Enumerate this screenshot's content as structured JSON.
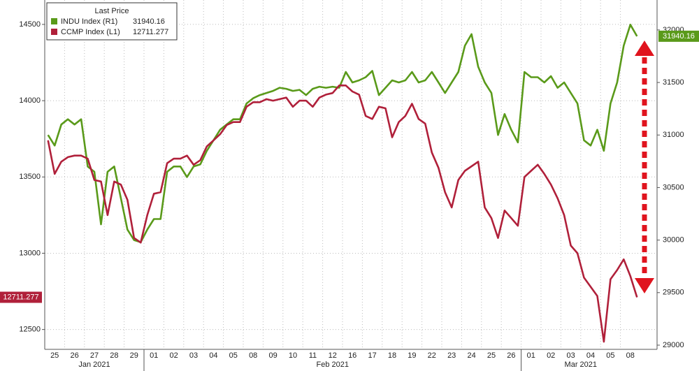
{
  "chart_data": {
    "type": "line",
    "legend_title": "Last Price",
    "months": [
      "Jan 2021",
      "Feb 2021",
      "Mar 2021"
    ],
    "categories": [
      null,
      "25",
      null,
      null,
      "26",
      null,
      null,
      "27",
      null,
      null,
      "28",
      null,
      null,
      "29",
      null,
      null,
      "01",
      null,
      null,
      "02",
      null,
      null,
      "03",
      null,
      null,
      "04",
      null,
      null,
      "05",
      null,
      null,
      "08",
      null,
      null,
      "09",
      null,
      null,
      "10",
      null,
      null,
      "11",
      null,
      null,
      "12",
      null,
      null,
      "16",
      null,
      null,
      "17",
      null,
      null,
      "18",
      null,
      null,
      "19",
      null,
      null,
      "22",
      null,
      null,
      "23",
      null,
      null,
      "24",
      null,
      null,
      "25",
      null,
      null,
      "26",
      null,
      null,
      "01",
      null,
      null,
      "02",
      null,
      null,
      "03",
      null,
      null,
      "04",
      null,
      null,
      "05",
      null,
      null,
      "08",
      null
    ],
    "series": [
      {
        "name": "INDU Index (R1)",
        "color": "#5a9a1a",
        "axis": "y2",
        "last_label": "31940.16",
        "values": [
          31000,
          30900,
          31100,
          31150,
          31100,
          31150,
          30700,
          30650,
          30150,
          30650,
          30700,
          30400,
          30100,
          30000,
          29980,
          30100,
          30200,
          30200,
          30650,
          30700,
          30700,
          30600,
          30700,
          30720,
          30850,
          30950,
          31050,
          31100,
          31150,
          31150,
          31300,
          31350,
          31380,
          31400,
          31420,
          31450,
          31440,
          31420,
          31430,
          31380,
          31440,
          31460,
          31450,
          31460,
          31450,
          31600,
          31500,
          31520,
          31550,
          31610,
          31380,
          31450,
          31520,
          31500,
          31520,
          31600,
          31500,
          31520,
          31600,
          31500,
          31400,
          31500,
          31600,
          31850,
          31960,
          31650,
          31500,
          31400,
          31000,
          31200,
          31050,
          30930,
          31600,
          31550,
          31550,
          31500,
          31560,
          31450,
          31500,
          31400,
          31300,
          30950,
          30900,
          31050,
          30850,
          31300,
          31500,
          31850,
          32050,
          31940.16
        ]
      },
      {
        "name": "CCMP Index (L1)",
        "color": "#b0203a",
        "last_label": "12711.277",
        "values": [
          13740,
          13520,
          13600,
          13630,
          13640,
          13640,
          13620,
          13480,
          13470,
          13250,
          13470,
          13450,
          13350,
          13100,
          13070,
          13250,
          13390,
          13400,
          13590,
          13620,
          13620,
          13640,
          13580,
          13610,
          13700,
          13740,
          13780,
          13840,
          13860,
          13860,
          13960,
          13990,
          13990,
          14010,
          14000,
          14010,
          14020,
          13960,
          14000,
          14000,
          13960,
          14020,
          14040,
          14050,
          14100,
          14100,
          14060,
          14040,
          13900,
          13880,
          13960,
          13950,
          13760,
          13860,
          13900,
          13980,
          13880,
          13850,
          13660,
          13560,
          13400,
          13300,
          13480,
          13540,
          13570,
          13600,
          13300,
          13230,
          13100,
          13280,
          13230,
          13180,
          13500,
          13540,
          13580,
          13520,
          13450,
          13360,
          13250,
          13050,
          13000,
          12840,
          12780,
          12720,
          12420,
          12830,
          12890,
          12960,
          12850,
          12711.277
        ]
      }
    ],
    "ylim": [
      12370,
      14660
    ],
    "yticks": [
      12500,
      13000,
      13500,
      14000,
      14500
    ],
    "y2lim": [
      28960,
      32285
    ],
    "y2ticks": [
      29000,
      29500,
      30000,
      30500,
      31000,
      31500,
      32000
    ],
    "grid": true
  }
}
